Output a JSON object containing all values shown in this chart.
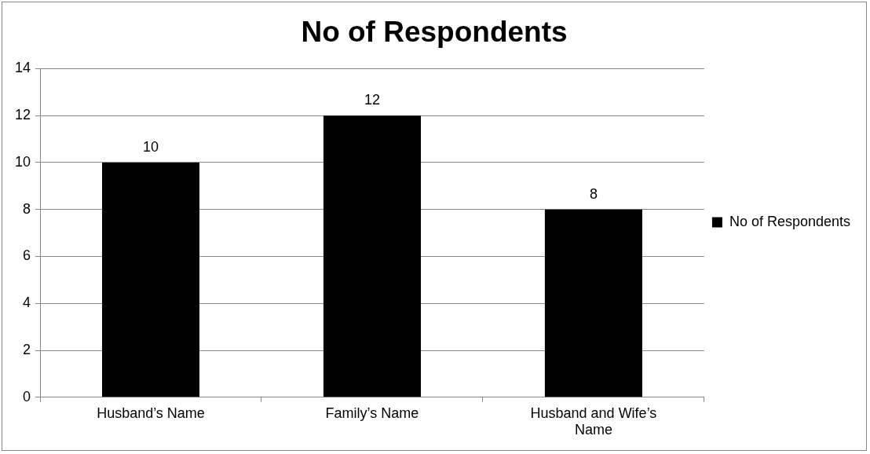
{
  "chart_data": {
    "type": "bar",
    "title": "No of Respondents",
    "categories": [
      "Husband’s Name",
      "Family’s Name",
      "Husband and Wife’s Name"
    ],
    "series": [
      {
        "name": "No of Respondents",
        "color": "#000000",
        "values": [
          10,
          12,
          8
        ]
      }
    ],
    "ylim": [
      0,
      14
    ],
    "yticks": [
      0,
      2,
      4,
      6,
      8,
      10,
      12,
      14
    ],
    "grid": "y",
    "legend": "right",
    "data_labels": true
  }
}
